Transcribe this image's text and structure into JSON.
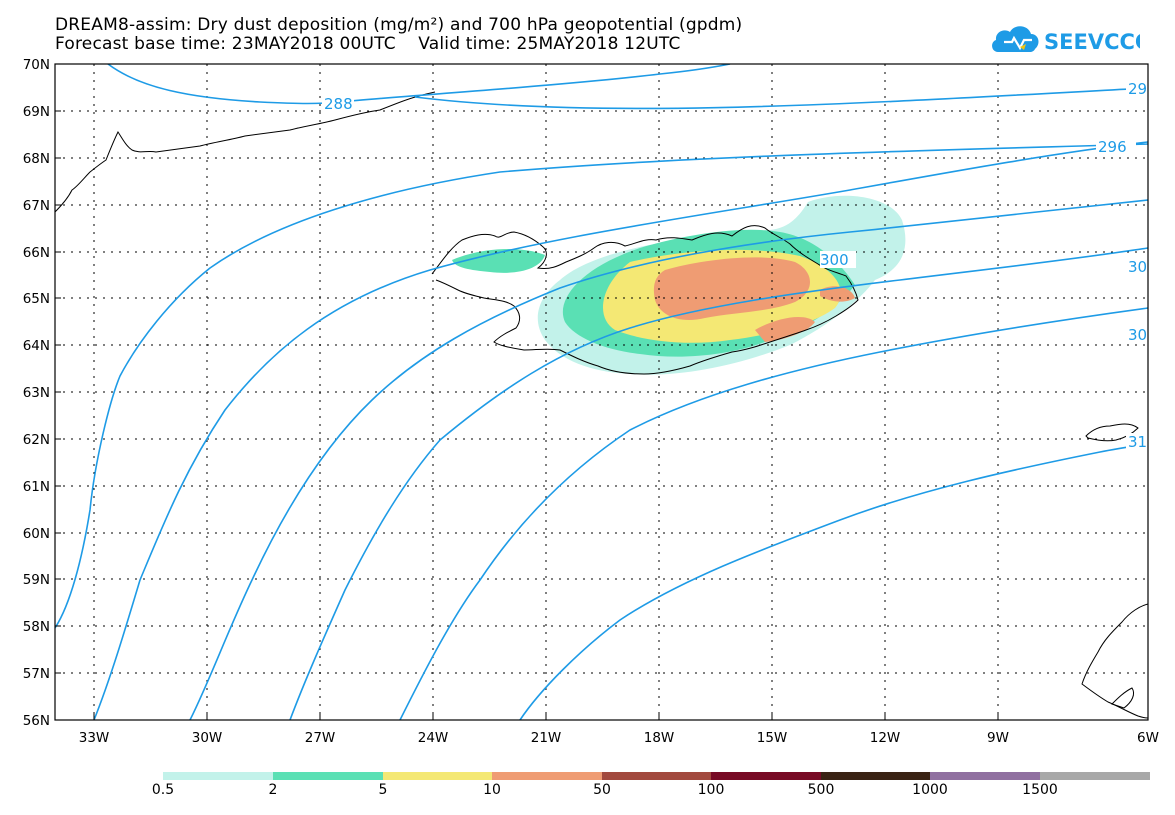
{
  "title": {
    "line1": "DREAM8-assim: Dry dust deposition (mg/m²) and 700 hPa geopotential (gpdm)",
    "line2": "Forecast base time: 23MAY2018 00UTC    Valid time: 25MAY2018 12UTC"
  },
  "logo": {
    "text": "SEEVCCC",
    "icon": "cloud-icon",
    "color": "#1e9be6"
  },
  "map": {
    "region": "Iceland",
    "lat_range": [
      56,
      70
    ],
    "lon_range": [
      -34.3,
      -6
    ],
    "lat_labels": [
      "70N",
      "69N",
      "68N",
      "67N",
      "66N",
      "65N",
      "64N",
      "63N",
      "62N",
      "61N",
      "60N",
      "59N",
      "58N",
      "57N",
      "56N"
    ],
    "lon_labels": [
      "33W",
      "30W",
      "27W",
      "24W",
      "21W",
      "18W",
      "15W",
      "12W",
      "9W",
      "6W"
    ],
    "grid": "dotted",
    "contour_color": "#1e9be6",
    "contour_labels": [
      "288",
      "29",
      "296",
      "300",
      "30",
      "30",
      "31"
    ]
  },
  "colorbar": {
    "colors": [
      "#c2f2ea",
      "#5ae0b4",
      "#f4e874",
      "#ef9c73",
      "#a2493e",
      "#780a25",
      "#3a2314",
      "#9070a0",
      "#a8a8a8"
    ],
    "labels": [
      "0.5",
      "2",
      "5",
      "10",
      "50",
      "100",
      "500",
      "1000",
      "1500"
    ]
  }
}
